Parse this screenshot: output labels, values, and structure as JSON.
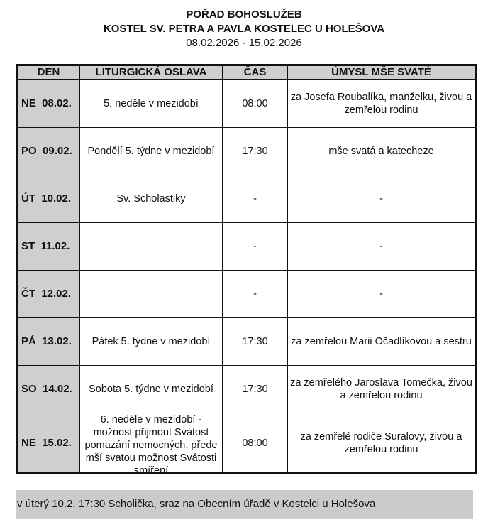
{
  "header": {
    "title": "POŘAD BOHOSLUŽEB",
    "subtitle": "KOSTEL SV. PETRA A PAVLA KOSTELEC U HOLEŠOVA",
    "date_range": "08.02.2026 - 15.02.2026"
  },
  "table": {
    "columns": [
      "DEN",
      "LITURGICKÁ OSLAVA",
      "ČAS",
      "ÚMYSL MŠE SVATÉ"
    ],
    "rows": [
      {
        "day": "NE  08.02.",
        "celebration": "5. neděle v mezidobí",
        "time": "08:00",
        "intention": "za Josefa Roubalíka, manželku, živou a zemřelou rodinu"
      },
      {
        "day": "PO  09.02.",
        "celebration": "Pondělí 5. týdne v mezidobí",
        "time": "17:30",
        "intention": "mše svatá a katecheze"
      },
      {
        "day": "ÚT  10.02.",
        "celebration": "Sv. Scholastiky",
        "time": "-",
        "intention": "-"
      },
      {
        "day": "ST  11.02.",
        "celebration": "",
        "time": "-",
        "intention": "-"
      },
      {
        "day": "ČT  12.02.",
        "celebration": "",
        "time": "-",
        "intention": "-"
      },
      {
        "day": "PÁ  13.02.",
        "celebration": "Pátek 5. týdne v mezidobí",
        "time": "17:30",
        "intention": "za zemřelou Marii Očadlíkovou a sestru"
      },
      {
        "day": "SO  14.02.",
        "celebration": "Sobota 5. týdne v mezidobí",
        "time": "17:30",
        "intention": "za zemřelého Jaroslava Tomečka, živou a zemřelou rodinu"
      },
      {
        "day": "NE  15.02.",
        "celebration": "6. neděle v mezidobí - možnost přijmout Svátost pomazání nemocných, přede mší svatou možnost Svátosti smíření",
        "time": "08:00",
        "intention": "za zemřelé rodiče Suralovy, živou a zemřelou rodinu"
      }
    ]
  },
  "footer": {
    "note": "v úterý 10.2. 17:30 Scholička, sraz na Obecním úřadě v Kostelci u Holešova"
  }
}
